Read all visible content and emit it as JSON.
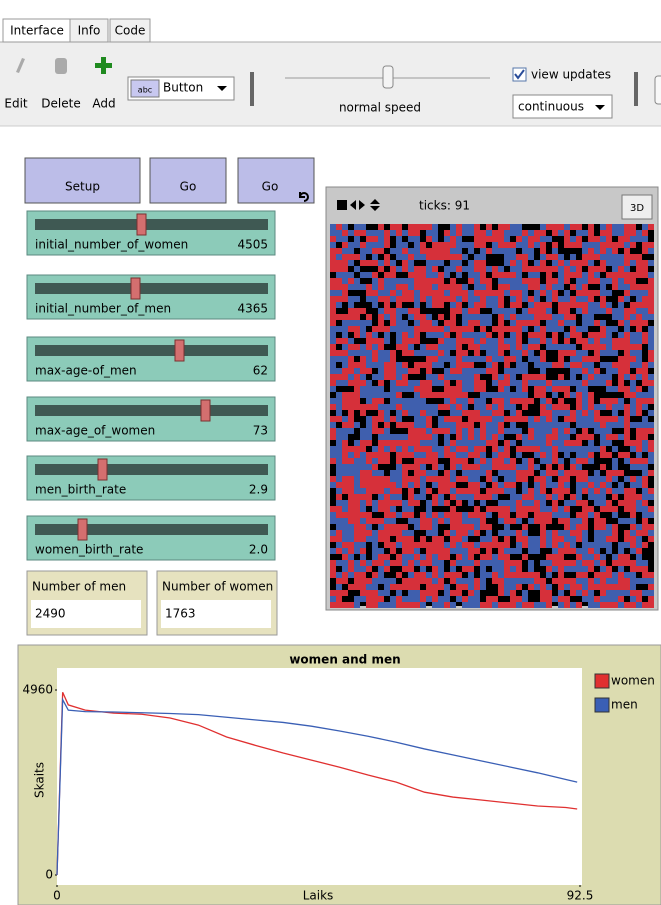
{
  "tabs": [
    "Interface",
    "Info",
    "Code"
  ],
  "toolbar": {
    "edit": "Edit",
    "delete": "Delete",
    "add": "Add",
    "widget_menu_icon": "abc",
    "widget_menu": "Button",
    "speed": "normal speed",
    "view_updates": "view updates",
    "update_mode": "continuous"
  },
  "buttons": [
    "Setup",
    "Go",
    "Go"
  ],
  "sliders": [
    {
      "name": "initial_number_of_women",
      "value": "4505"
    },
    {
      "name": "initial_number_of_men",
      "value": "4365"
    },
    {
      "name": "max-age-of_men",
      "value": "62"
    },
    {
      "name": "max-age_of_women",
      "value": "73"
    },
    {
      "name": "men_birth_rate",
      "value": "2.9"
    },
    {
      "name": "women_birth_rate",
      "value": "2.0"
    }
  ],
  "monitors": [
    {
      "name": "Number of men",
      "value": "2490"
    },
    {
      "name": "Number of women",
      "value": "1763"
    }
  ],
  "view": {
    "ticks": "ticks: 91",
    "three_d": "3D"
  },
  "chart_data": {
    "type": "line",
    "title": "women and men",
    "x_label": "Laiks",
    "y_label": "Skaits",
    "x": [
      0,
      1,
      2,
      5,
      10,
      15,
      20,
      25,
      30,
      35,
      40,
      45,
      50,
      55,
      60,
      65,
      70,
      75,
      80,
      85,
      90,
      92
    ],
    "series": [
      {
        "name": "women",
        "color": "#e03030",
        "values": [
          0,
          4900,
          4560,
          4420,
          4340,
          4310,
          4210,
          4020,
          3700,
          3480,
          3270,
          3080,
          2890,
          2680,
          2490,
          2220,
          2090,
          2010,
          1930,
          1850,
          1810,
          1770
        ]
      },
      {
        "name": "men",
        "color": "#3a5fb5",
        "values": [
          0,
          4700,
          4420,
          4380,
          4370,
          4350,
          4330,
          4300,
          4230,
          4160,
          4090,
          3990,
          3860,
          3720,
          3560,
          3380,
          3220,
          3060,
          2900,
          2740,
          2560,
          2490
        ]
      }
    ],
    "xlim": [
      0,
      92.5
    ],
    "ylim": [
      0,
      4960
    ],
    "xticks": [
      0,
      92.5
    ],
    "yticks": [
      0,
      4960
    ],
    "legend": "right",
    "grid": false
  }
}
